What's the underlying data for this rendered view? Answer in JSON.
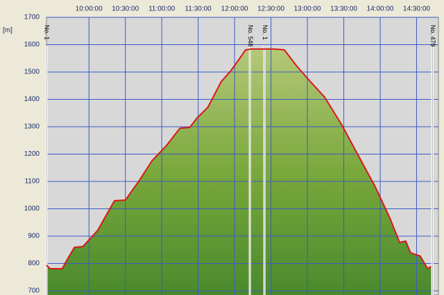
{
  "chart_data": {
    "type": "area",
    "y_label": "[m]",
    "x": [
      565,
      568,
      578,
      581,
      588,
      595,
      607,
      618,
      621,
      630,
      641,
      652,
      664,
      675,
      683,
      689,
      698,
      709,
      717,
      726,
      729,
      734,
      744,
      752,
      761,
      771,
      782,
      794,
      808,
      822,
      836,
      848,
      856,
      861,
      865,
      873,
      879,
      882
    ],
    "values": [
      794,
      781,
      781,
      806,
      859,
      862,
      920,
      1006,
      1029,
      1032,
      1100,
      1176,
      1232,
      1295,
      1297,
      1332,
      1371,
      1465,
      1505,
      1561,
      1581,
      1584,
      1584,
      1584,
      1581,
      1523,
      1467,
      1409,
      1309,
      1194,
      1080,
      966,
      877,
      882,
      839,
      827,
      781,
      789
    ],
    "color": "#d81818",
    "xlim": [
      565,
      888
    ],
    "ylim": [
      700,
      1700
    ],
    "xticks": [
      {
        "value": 600,
        "label": "10:00:00"
      },
      {
        "value": 630,
        "label": "10:30:00"
      },
      {
        "value": 660,
        "label": "11:00:00"
      },
      {
        "value": 690,
        "label": "11:30:00"
      },
      {
        "value": 720,
        "label": "12:00:00"
      },
      {
        "value": 750,
        "label": "12:30:00"
      },
      {
        "value": 780,
        "label": "13:00:00"
      },
      {
        "value": 810,
        "label": "13:30:00"
      },
      {
        "value": 840,
        "label": "14:00:00"
      },
      {
        "value": 870,
        "label": "14:30:00"
      }
    ],
    "yticks": [
      700,
      800,
      900,
      1000,
      1100,
      1200,
      1300,
      1400,
      1500,
      1600,
      1700
    ],
    "grid": true,
    "annotations": [
      {
        "text": "No. 548",
        "x": 732.6
      },
      {
        "text": "No. 1",
        "x": 744.6
      },
      {
        "text": "No. 1",
        "x": 565
      },
      {
        "text": "No. 479",
        "x": 883
      }
    ]
  }
}
